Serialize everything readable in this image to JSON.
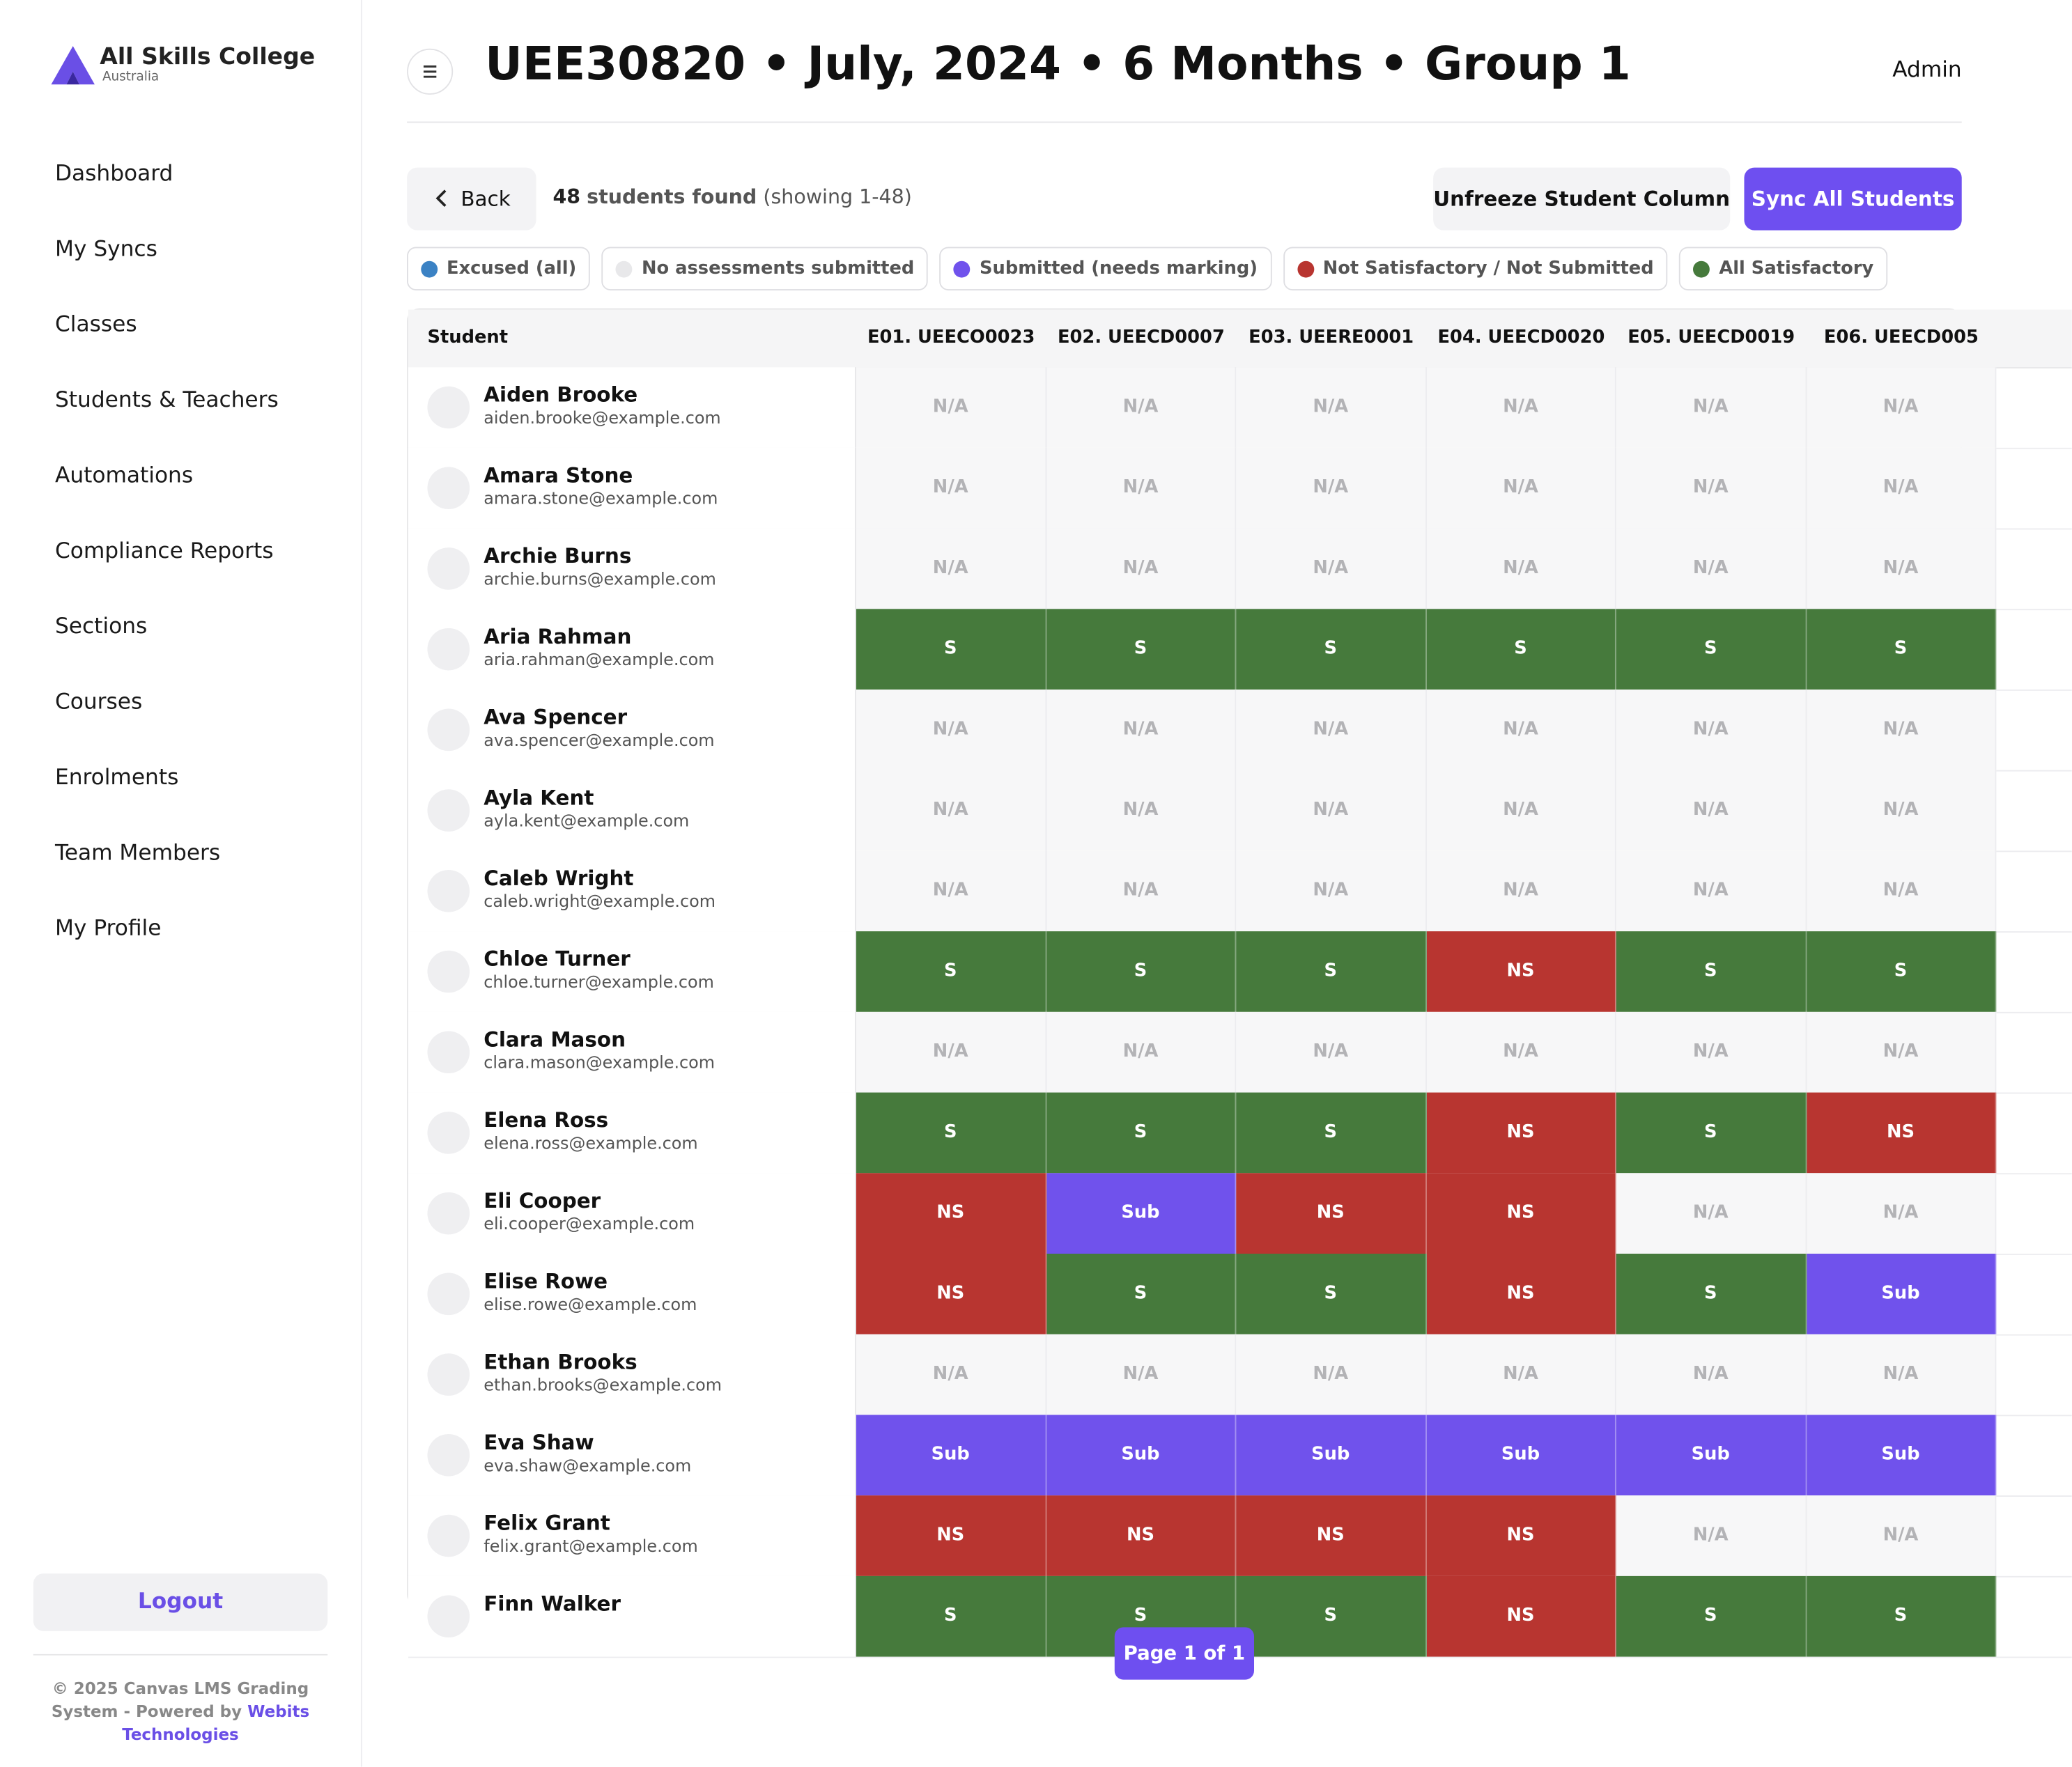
{
  "sidebar": {
    "brand": "All Skills College",
    "brand_sub": "Australia",
    "nav": [
      "Dashboard",
      "My Syncs",
      "Classes",
      "Students & Teachers",
      "Automations",
      "Compliance Reports",
      "Sections",
      "Courses",
      "Enrolments",
      "Team Members",
      "My Profile"
    ],
    "logout": "Logout",
    "footer": {
      "text": "© 2025 Canvas LMS Grading System - Powered by",
      "link": "Webits Technologies"
    }
  },
  "header": {
    "title": "UEE30820 • July, 2024 • 6 Months • Group 1",
    "user": "Admin"
  },
  "toolbar": {
    "back": "Back",
    "count": "48",
    "found": "students found",
    "showing": "(showing 1-48)",
    "unfreeze": "Unfreeze Student Column",
    "sync": "Sync All Students"
  },
  "legend": [
    {
      "label": "Excused (all)",
      "color": "#3b82c4"
    },
    {
      "label": "No assessments submitted",
      "color": "#e8e8ea"
    },
    {
      "label": "Submitted (needs marking)",
      "color": "#7052ec"
    },
    {
      "label": "Not Satisfactory / Not Submitted",
      "color": "#b83530"
    },
    {
      "label": "All Satisfactory",
      "color": "#467a3c"
    }
  ],
  "table": {
    "student_header": "Student",
    "columns": [
      "E01. UEECO0023",
      "E02. UEECD0007",
      "E03. UEERE0001",
      "E04. UEECD0020",
      "E05. UEECD0019",
      "E06. UEECD005"
    ],
    "rows": [
      {
        "name": "Aiden Brooke",
        "email": "aiden.brooke@example.com",
        "cells": [
          "N/A",
          "N/A",
          "N/A",
          "N/A",
          "N/A",
          "N/A"
        ]
      },
      {
        "name": "Amara Stone",
        "email": "amara.stone@example.com",
        "cells": [
          "N/A",
          "N/A",
          "N/A",
          "N/A",
          "N/A",
          "N/A"
        ]
      },
      {
        "name": "Archie Burns",
        "email": "archie.burns@example.com",
        "cells": [
          "N/A",
          "N/A",
          "N/A",
          "N/A",
          "N/A",
          "N/A"
        ]
      },
      {
        "name": "Aria Rahman",
        "email": "aria.rahman@example.com",
        "cells": [
          "S",
          "S",
          "S",
          "S",
          "S",
          "S"
        ]
      },
      {
        "name": "Ava Spencer",
        "email": "ava.spencer@example.com",
        "cells": [
          "N/A",
          "N/A",
          "N/A",
          "N/A",
          "N/A",
          "N/A"
        ]
      },
      {
        "name": "Ayla Kent",
        "email": "ayla.kent@example.com",
        "cells": [
          "N/A",
          "N/A",
          "N/A",
          "N/A",
          "N/A",
          "N/A"
        ]
      },
      {
        "name": "Caleb Wright",
        "email": "caleb.wright@example.com",
        "cells": [
          "N/A",
          "N/A",
          "N/A",
          "N/A",
          "N/A",
          "N/A"
        ]
      },
      {
        "name": "Chloe Turner",
        "email": "chloe.turner@example.com",
        "cells": [
          "S",
          "S",
          "S",
          "NS",
          "S",
          "S"
        ]
      },
      {
        "name": "Clara Mason",
        "email": "clara.mason@example.com",
        "cells": [
          "N/A",
          "N/A",
          "N/A",
          "N/A",
          "N/A",
          "N/A"
        ]
      },
      {
        "name": "Elena Ross",
        "email": "elena.ross@example.com",
        "cells": [
          "S",
          "S",
          "S",
          "NS",
          "S",
          "NS"
        ]
      },
      {
        "name": "Eli Cooper",
        "email": "eli.cooper@example.com",
        "cells": [
          "NS",
          "Sub",
          "NS",
          "NS",
          "N/A",
          "N/A"
        ]
      },
      {
        "name": "Elise Rowe",
        "email": "elise.rowe@example.com",
        "cells": [
          "NS",
          "S",
          "S",
          "NS",
          "S",
          "Sub"
        ]
      },
      {
        "name": "Ethan Brooks",
        "email": "ethan.brooks@example.com",
        "cells": [
          "N/A",
          "N/A",
          "N/A",
          "N/A",
          "N/A",
          "N/A"
        ]
      },
      {
        "name": "Eva Shaw",
        "email": "eva.shaw@example.com",
        "cells": [
          "Sub",
          "Sub",
          "Sub",
          "Sub",
          "Sub",
          "Sub"
        ]
      },
      {
        "name": "Felix Grant",
        "email": "felix.grant@example.com",
        "cells": [
          "NS",
          "NS",
          "NS",
          "NS",
          "N/A",
          "N/A"
        ]
      },
      {
        "name": "Finn Walker",
        "cells": [
          "S",
          "S",
          "S",
          "NS",
          "S",
          "S"
        ]
      }
    ]
  },
  "pagination": "Page 1 of 1"
}
